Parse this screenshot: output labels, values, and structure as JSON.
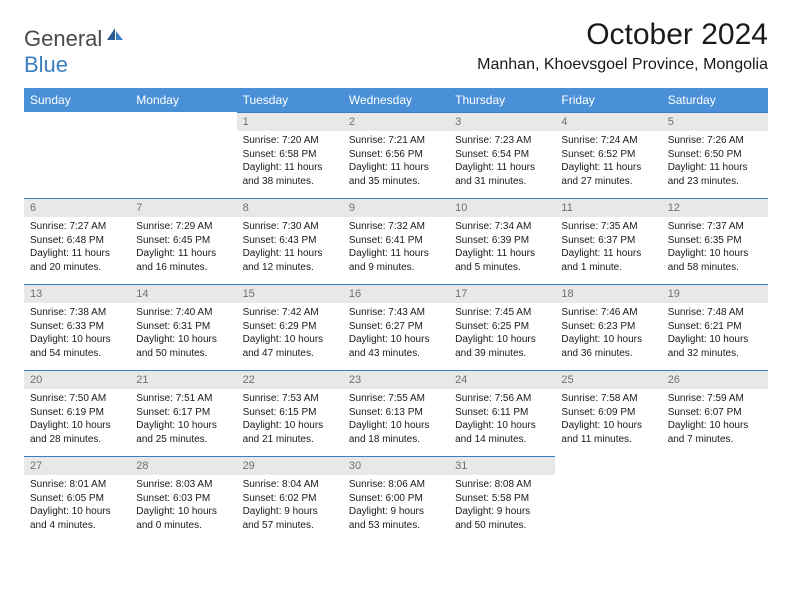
{
  "logo": {
    "general": "General",
    "blue": "Blue"
  },
  "title": "October 2024",
  "location": "Manhan, Khoevsgoel Province, Mongolia",
  "colors": {
    "header_bg": "#4a90d9",
    "header_text": "#ffffff",
    "daynum_bg": "#e8e8e8",
    "daynum_text": "#707070",
    "rule": "#3a7fbf",
    "logo_gray": "#4a4a4a",
    "logo_blue": "#3a7fbf"
  },
  "weekdays": [
    "Sunday",
    "Monday",
    "Tuesday",
    "Wednesday",
    "Thursday",
    "Friday",
    "Saturday"
  ],
  "weeks": [
    [
      null,
      null,
      {
        "n": "1",
        "sr": "Sunrise: 7:20 AM",
        "ss": "Sunset: 6:58 PM",
        "d1": "Daylight: 11 hours",
        "d2": "and 38 minutes."
      },
      {
        "n": "2",
        "sr": "Sunrise: 7:21 AM",
        "ss": "Sunset: 6:56 PM",
        "d1": "Daylight: 11 hours",
        "d2": "and 35 minutes."
      },
      {
        "n": "3",
        "sr": "Sunrise: 7:23 AM",
        "ss": "Sunset: 6:54 PM",
        "d1": "Daylight: 11 hours",
        "d2": "and 31 minutes."
      },
      {
        "n": "4",
        "sr": "Sunrise: 7:24 AM",
        "ss": "Sunset: 6:52 PM",
        "d1": "Daylight: 11 hours",
        "d2": "and 27 minutes."
      },
      {
        "n": "5",
        "sr": "Sunrise: 7:26 AM",
        "ss": "Sunset: 6:50 PM",
        "d1": "Daylight: 11 hours",
        "d2": "and 23 minutes."
      }
    ],
    [
      {
        "n": "6",
        "sr": "Sunrise: 7:27 AM",
        "ss": "Sunset: 6:48 PM",
        "d1": "Daylight: 11 hours",
        "d2": "and 20 minutes."
      },
      {
        "n": "7",
        "sr": "Sunrise: 7:29 AM",
        "ss": "Sunset: 6:45 PM",
        "d1": "Daylight: 11 hours",
        "d2": "and 16 minutes."
      },
      {
        "n": "8",
        "sr": "Sunrise: 7:30 AM",
        "ss": "Sunset: 6:43 PM",
        "d1": "Daylight: 11 hours",
        "d2": "and 12 minutes."
      },
      {
        "n": "9",
        "sr": "Sunrise: 7:32 AM",
        "ss": "Sunset: 6:41 PM",
        "d1": "Daylight: 11 hours",
        "d2": "and 9 minutes."
      },
      {
        "n": "10",
        "sr": "Sunrise: 7:34 AM",
        "ss": "Sunset: 6:39 PM",
        "d1": "Daylight: 11 hours",
        "d2": "and 5 minutes."
      },
      {
        "n": "11",
        "sr": "Sunrise: 7:35 AM",
        "ss": "Sunset: 6:37 PM",
        "d1": "Daylight: 11 hours",
        "d2": "and 1 minute."
      },
      {
        "n": "12",
        "sr": "Sunrise: 7:37 AM",
        "ss": "Sunset: 6:35 PM",
        "d1": "Daylight: 10 hours",
        "d2": "and 58 minutes."
      }
    ],
    [
      {
        "n": "13",
        "sr": "Sunrise: 7:38 AM",
        "ss": "Sunset: 6:33 PM",
        "d1": "Daylight: 10 hours",
        "d2": "and 54 minutes."
      },
      {
        "n": "14",
        "sr": "Sunrise: 7:40 AM",
        "ss": "Sunset: 6:31 PM",
        "d1": "Daylight: 10 hours",
        "d2": "and 50 minutes."
      },
      {
        "n": "15",
        "sr": "Sunrise: 7:42 AM",
        "ss": "Sunset: 6:29 PM",
        "d1": "Daylight: 10 hours",
        "d2": "and 47 minutes."
      },
      {
        "n": "16",
        "sr": "Sunrise: 7:43 AM",
        "ss": "Sunset: 6:27 PM",
        "d1": "Daylight: 10 hours",
        "d2": "and 43 minutes."
      },
      {
        "n": "17",
        "sr": "Sunrise: 7:45 AM",
        "ss": "Sunset: 6:25 PM",
        "d1": "Daylight: 10 hours",
        "d2": "and 39 minutes."
      },
      {
        "n": "18",
        "sr": "Sunrise: 7:46 AM",
        "ss": "Sunset: 6:23 PM",
        "d1": "Daylight: 10 hours",
        "d2": "and 36 minutes."
      },
      {
        "n": "19",
        "sr": "Sunrise: 7:48 AM",
        "ss": "Sunset: 6:21 PM",
        "d1": "Daylight: 10 hours",
        "d2": "and 32 minutes."
      }
    ],
    [
      {
        "n": "20",
        "sr": "Sunrise: 7:50 AM",
        "ss": "Sunset: 6:19 PM",
        "d1": "Daylight: 10 hours",
        "d2": "and 28 minutes."
      },
      {
        "n": "21",
        "sr": "Sunrise: 7:51 AM",
        "ss": "Sunset: 6:17 PM",
        "d1": "Daylight: 10 hours",
        "d2": "and 25 minutes."
      },
      {
        "n": "22",
        "sr": "Sunrise: 7:53 AM",
        "ss": "Sunset: 6:15 PM",
        "d1": "Daylight: 10 hours",
        "d2": "and 21 minutes."
      },
      {
        "n": "23",
        "sr": "Sunrise: 7:55 AM",
        "ss": "Sunset: 6:13 PM",
        "d1": "Daylight: 10 hours",
        "d2": "and 18 minutes."
      },
      {
        "n": "24",
        "sr": "Sunrise: 7:56 AM",
        "ss": "Sunset: 6:11 PM",
        "d1": "Daylight: 10 hours",
        "d2": "and 14 minutes."
      },
      {
        "n": "25",
        "sr": "Sunrise: 7:58 AM",
        "ss": "Sunset: 6:09 PM",
        "d1": "Daylight: 10 hours",
        "d2": "and 11 minutes."
      },
      {
        "n": "26",
        "sr": "Sunrise: 7:59 AM",
        "ss": "Sunset: 6:07 PM",
        "d1": "Daylight: 10 hours",
        "d2": "and 7 minutes."
      }
    ],
    [
      {
        "n": "27",
        "sr": "Sunrise: 8:01 AM",
        "ss": "Sunset: 6:05 PM",
        "d1": "Daylight: 10 hours",
        "d2": "and 4 minutes."
      },
      {
        "n": "28",
        "sr": "Sunrise: 8:03 AM",
        "ss": "Sunset: 6:03 PM",
        "d1": "Daylight: 10 hours",
        "d2": "and 0 minutes."
      },
      {
        "n": "29",
        "sr": "Sunrise: 8:04 AM",
        "ss": "Sunset: 6:02 PM",
        "d1": "Daylight: 9 hours",
        "d2": "and 57 minutes."
      },
      {
        "n": "30",
        "sr": "Sunrise: 8:06 AM",
        "ss": "Sunset: 6:00 PM",
        "d1": "Daylight: 9 hours",
        "d2": "and 53 minutes."
      },
      {
        "n": "31",
        "sr": "Sunrise: 8:08 AM",
        "ss": "Sunset: 5:58 PM",
        "d1": "Daylight: 9 hours",
        "d2": "and 50 minutes."
      },
      null,
      null
    ]
  ]
}
